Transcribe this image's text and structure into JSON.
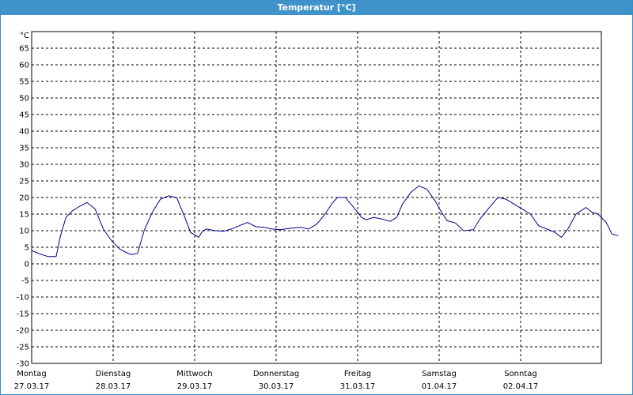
{
  "window": {
    "title": "Temperatur [°C]"
  },
  "colors": {
    "titlebar": "#3f93c9",
    "series": "#00008b",
    "grid": "#000000"
  },
  "chart_data": {
    "type": "line",
    "title": "Temperatur [°C]",
    "ylabel": "°C",
    "ylim": [
      -30,
      70
    ],
    "yticks": [
      -30,
      -25,
      -20,
      -15,
      -10,
      -5,
      0,
      5,
      10,
      15,
      20,
      25,
      30,
      35,
      40,
      45,
      50,
      55,
      60,
      65
    ],
    "xlim": [
      0,
      7
    ],
    "x_unit": "days from Montag 27.03.17 00:00",
    "grid": true,
    "grid_style": "dashed",
    "legend": "none",
    "days": [
      {
        "weekday": "Montag",
        "date": "27.03.17"
      },
      {
        "weekday": "Dienstag",
        "date": "28.03.17"
      },
      {
        "weekday": "Mittwoch",
        "date": "29.03.17"
      },
      {
        "weekday": "Donnerstag",
        "date": "30.03.17"
      },
      {
        "weekday": "Freitag",
        "date": "31.03.17"
      },
      {
        "weekday": "Samstag",
        "date": "01.04.17"
      },
      {
        "weekday": "Sonntag",
        "date": "02.04.17"
      }
    ],
    "series": [
      {
        "points": [
          [
            0.0,
            4.0
          ],
          [
            0.1,
            3.0
          ],
          [
            0.2,
            2.2
          ],
          [
            0.3,
            2.2
          ],
          [
            0.35,
            8.0
          ],
          [
            0.42,
            14.0
          ],
          [
            0.5,
            16.0
          ],
          [
            0.6,
            17.5
          ],
          [
            0.68,
            18.5
          ],
          [
            0.78,
            16.5
          ],
          [
            0.88,
            10.5
          ],
          [
            0.98,
            7.0
          ],
          [
            1.08,
            4.5
          ],
          [
            1.18,
            3.2
          ],
          [
            1.23,
            2.8
          ],
          [
            1.3,
            3.2
          ],
          [
            1.38,
            10.0
          ],
          [
            1.48,
            15.5
          ],
          [
            1.58,
            19.5
          ],
          [
            1.68,
            20.5
          ],
          [
            1.78,
            20.0
          ],
          [
            1.88,
            14.0
          ],
          [
            1.95,
            9.5
          ],
          [
            2.05,
            8.0
          ],
          [
            2.1,
            10.0
          ],
          [
            2.15,
            10.5
          ],
          [
            2.25,
            10.0
          ],
          [
            2.35,
            9.8
          ],
          [
            2.45,
            10.5
          ],
          [
            2.55,
            11.5
          ],
          [
            2.65,
            12.5
          ],
          [
            2.75,
            11.2
          ],
          [
            2.85,
            11.0
          ],
          [
            2.95,
            10.5
          ],
          [
            3.05,
            10.3
          ],
          [
            3.2,
            10.8
          ],
          [
            3.3,
            11.0
          ],
          [
            3.4,
            10.5
          ],
          [
            3.5,
            12.0
          ],
          [
            3.6,
            15.0
          ],
          [
            3.68,
            18.0
          ],
          [
            3.75,
            20.0
          ],
          [
            3.85,
            20.0
          ],
          [
            3.95,
            17.0
          ],
          [
            4.05,
            14.0
          ],
          [
            4.1,
            13.3
          ],
          [
            4.2,
            14.0
          ],
          [
            4.3,
            13.5
          ],
          [
            4.4,
            12.8
          ],
          [
            4.48,
            14.0
          ],
          [
            4.55,
            18.0
          ],
          [
            4.65,
            21.5
          ],
          [
            4.75,
            23.5
          ],
          [
            4.85,
            22.5
          ],
          [
            4.95,
            19.0
          ],
          [
            5.03,
            15.5
          ],
          [
            5.1,
            13.0
          ],
          [
            5.2,
            12.3
          ],
          [
            5.3,
            10.0
          ],
          [
            5.42,
            10.3
          ],
          [
            5.5,
            13.5
          ],
          [
            5.6,
            16.5
          ],
          [
            5.72,
            20.0
          ],
          [
            5.82,
            19.5
          ],
          [
            5.92,
            18.0
          ],
          [
            6.02,
            16.5
          ],
          [
            6.12,
            15.0
          ],
          [
            6.22,
            11.5
          ],
          [
            6.32,
            10.5
          ],
          [
            6.42,
            9.5
          ],
          [
            6.5,
            8.0
          ],
          [
            6.58,
            10.5
          ],
          [
            6.68,
            15.0
          ],
          [
            6.8,
            17.0
          ],
          [
            6.88,
            15.5
          ],
          [
            6.95,
            15.0
          ],
          [
            7.05,
            12.5
          ],
          [
            7.12,
            9.0
          ],
          [
            7.2,
            8.5
          ]
        ]
      }
    ]
  }
}
